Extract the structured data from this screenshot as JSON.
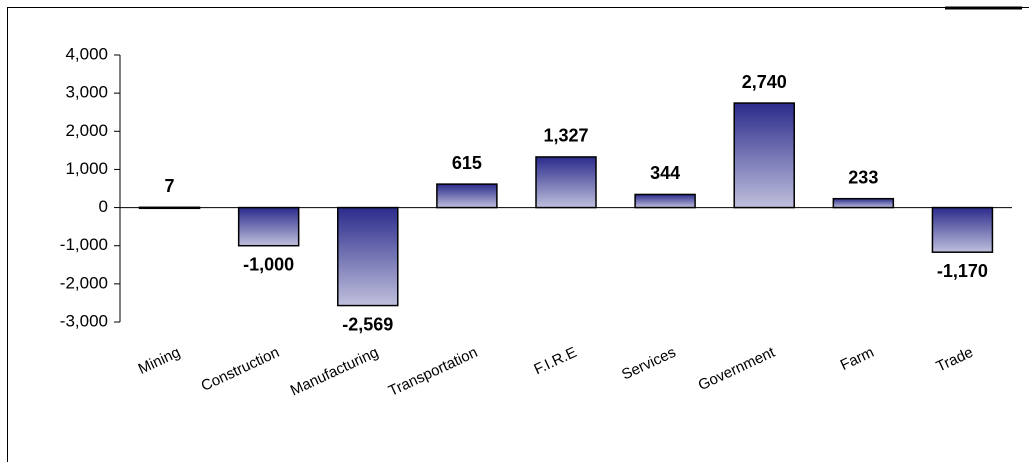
{
  "chart_data": {
    "type": "bar",
    "categories": [
      "Mining",
      "Construction",
      "Manufacturing",
      "Transportation",
      "F.I.R.E",
      "Services",
      "Government",
      "Farm",
      "Trade"
    ],
    "values": [
      7,
      -1000,
      -2569,
      615,
      1327,
      344,
      2740,
      233,
      -1170
    ],
    "value_labels": [
      "7",
      "-1,000",
      "-2,569",
      "615",
      "1,327",
      "344",
      "2,740",
      "233",
      "-1,170"
    ],
    "color": "#2b2b8c",
    "ylim": [
      -3000,
      4000
    ],
    "yticks": [
      {
        "value": -3000,
        "label": "-3,000"
      },
      {
        "value": -2000,
        "label": "-2,000"
      },
      {
        "value": -1000,
        "label": "-1,000"
      },
      0,
      {
        "value": 1000,
        "label": "1,000"
      },
      {
        "value": 2000,
        "label": "2,000"
      },
      {
        "value": 3000,
        "label": "3,000"
      },
      {
        "value": 4000,
        "label": "4,000"
      }
    ],
    "grid": false
  }
}
